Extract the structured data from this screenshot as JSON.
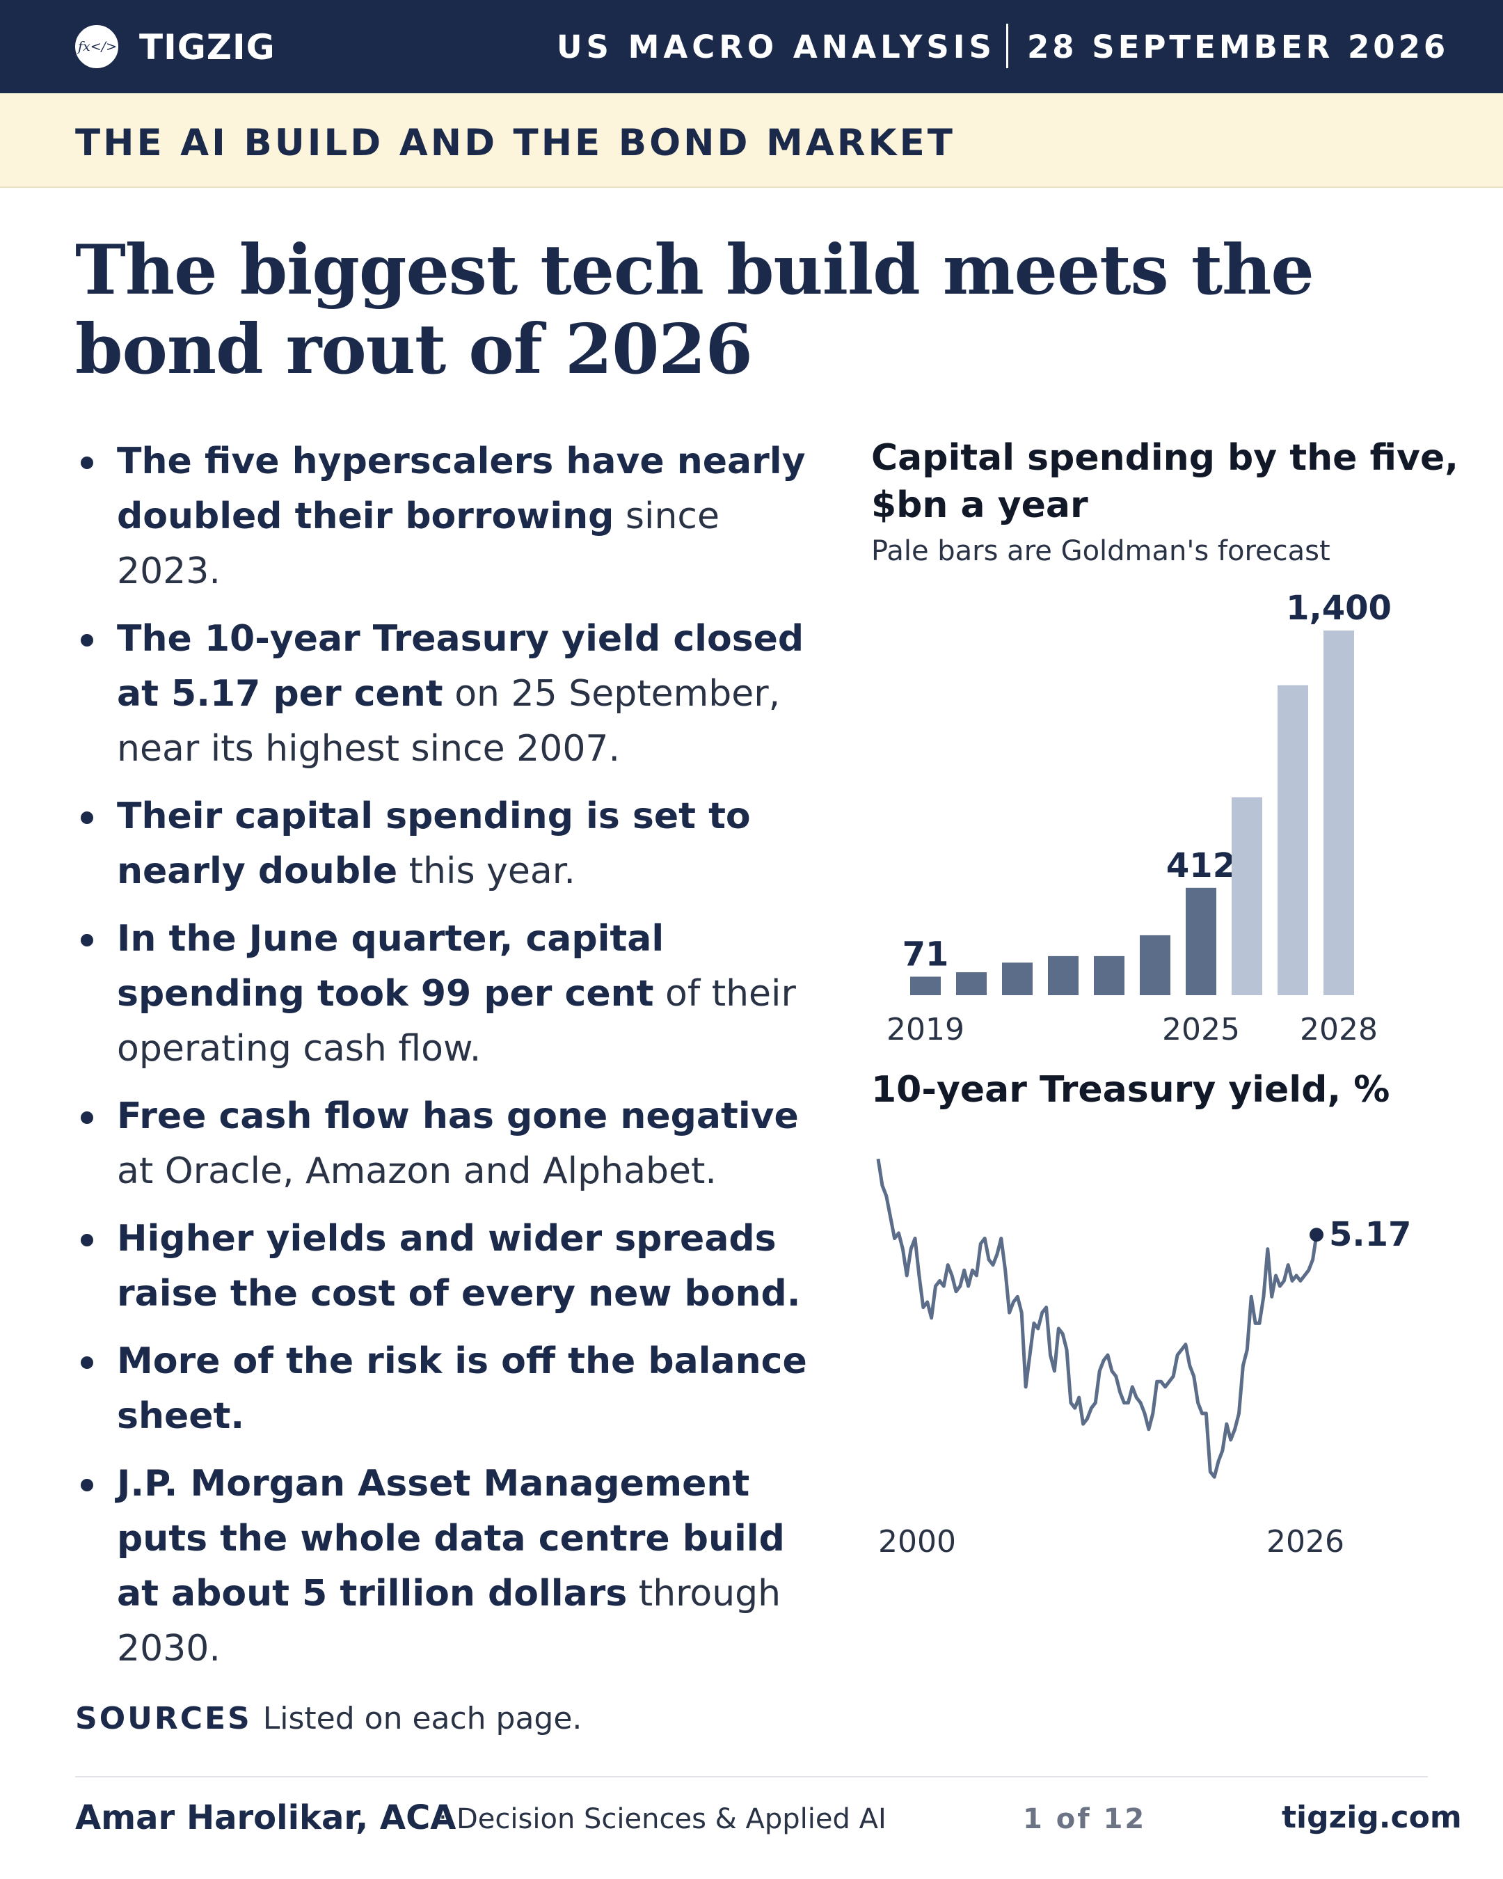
{
  "header": {
    "logo_glyph": "fx</>",
    "brand": "TIGZIG",
    "section": "US MACRO ANALYSIS",
    "date": "28 SEPTEMBER 2026"
  },
  "kicker": "THE AI BUILD AND THE BOND MARKET",
  "headline_line1": "The biggest tech build meets the",
  "headline_line2": "bond rout of 2026",
  "bullets": [
    {
      "bold": "The five hyperscalers have nearly doubled their borrowing",
      "rest": " since 2023."
    },
    {
      "bold": "The 10-year Treasury yield closed at 5.17 per cent",
      "rest": " on 25 September, near its highest since 2007."
    },
    {
      "bold": "Their capital spending is set to nearly double",
      "rest": " this year."
    },
    {
      "bold": "In the June quarter, capital spending took 99 per cent",
      "rest": " of their operating cash flow."
    },
    {
      "bold": "Free cash flow has gone negative",
      "rest": " at Oracle, Amazon and Alphabet."
    },
    {
      "bold": "Higher yields and wider spreads raise the cost of every new bond.",
      "rest": ""
    },
    {
      "bold": "More of the risk is off the balance sheet.",
      "rest": ""
    },
    {
      "bold": "J.P. Morgan Asset Management puts the whole data centre build at about 5 trillion dollars",
      "rest": " through 2030."
    }
  ],
  "sources": {
    "label": "SOURCES",
    "text": "Listed on each page."
  },
  "footer": {
    "name": "Amar Harolikar, ACA",
    "separator": "·",
    "role": "Decision Sciences & Applied AI",
    "page": "1 of 12",
    "url": "tigzig.com"
  },
  "colors": {
    "navy": "#1b2a4a",
    "cream": "#fdf4dc",
    "actual_bar": "#5c6d8a",
    "forecast_bar": "#b8c4d6",
    "line": "#5c6d8a"
  },
  "chart_data": [
    {
      "type": "bar",
      "title_line1": "Capital spending by the five,",
      "title_line2": "$bn a year",
      "subtitle": "Pale bars are Goldman's forecast",
      "categories": [
        "2019",
        "2020",
        "2021",
        "2022",
        "2023",
        "2024",
        "2025",
        "2026",
        "2027",
        "2028"
      ],
      "values": [
        71,
        88,
        125,
        150,
        150,
        230,
        412,
        760,
        1190,
        1400
      ],
      "forecast": [
        false,
        false,
        false,
        false,
        false,
        false,
        false,
        true,
        true,
        true
      ],
      "data_labels": {
        "2019": "71",
        "2025": "412",
        "2028": "1,400"
      },
      "tick_labels": [
        "2019",
        "2025",
        "2028"
      ],
      "ylim": [
        0,
        1400
      ]
    },
    {
      "type": "line",
      "title": "10-year Treasury yield, %",
      "x_tick_labels": [
        "2000",
        "2026"
      ],
      "end_label": "5.17",
      "ylim": [
        0.5,
        6.8
      ],
      "series": [
        {
          "x": [
            2000.0,
            2000.25,
            2000.5,
            2000.75,
            2001.0,
            2001.25,
            2001.5,
            2001.75,
            2002.0,
            2002.25,
            2002.5,
            2002.75,
            2003.0,
            2003.25,
            2003.5,
            2003.75,
            2004.0,
            2004.25,
            2004.5,
            2004.75,
            2005.0,
            2005.25,
            2005.5,
            2005.75,
            2006.0,
            2006.25,
            2006.5,
            2006.75,
            2007.0,
            2007.25,
            2007.5,
            2007.75,
            2008.0,
            2008.25,
            2008.5,
            2008.75,
            2009.0,
            2009.25,
            2009.5,
            2009.75,
            2010.0,
            2010.25,
            2010.5,
            2010.75,
            2011.0,
            2011.25,
            2011.5,
            2011.75,
            2012.0,
            2012.25,
            2012.5,
            2012.75,
            2013.0,
            2013.25,
            2013.5,
            2013.75,
            2014.0,
            2014.25,
            2014.5,
            2014.75,
            2015.0,
            2015.25,
            2015.5,
            2015.75,
            2016.0,
            2016.25,
            2016.5,
            2016.75,
            2017.0,
            2017.25,
            2017.5,
            2017.75,
            2018.0,
            2018.25,
            2018.5,
            2018.75,
            2019.0,
            2019.25,
            2019.5,
            2019.75,
            2020.0,
            2020.25,
            2020.5,
            2020.75,
            2021.0,
            2021.25,
            2021.5,
            2021.75,
            2022.0,
            2022.25,
            2022.5,
            2022.75,
            2023.0,
            2023.25,
            2023.5,
            2023.75,
            2024.0,
            2024.25,
            2024.5,
            2024.75,
            2025.0,
            2025.25,
            2025.5,
            2025.75,
            2026.0,
            2026.25,
            2026.5,
            2026.73
          ],
          "y": [
            6.6,
            6.1,
            5.9,
            5.5,
            5.1,
            5.2,
            4.9,
            4.4,
            4.9,
            5.1,
            4.4,
            3.8,
            3.9,
            3.6,
            4.2,
            4.3,
            4.2,
            4.6,
            4.4,
            4.1,
            4.2,
            4.5,
            4.2,
            4.5,
            4.4,
            5.0,
            5.1,
            4.7,
            4.6,
            4.8,
            5.1,
            4.5,
            3.7,
            3.9,
            4.0,
            3.7,
            2.3,
            2.9,
            3.5,
            3.4,
            3.7,
            3.8,
            2.9,
            2.6,
            3.4,
            3.3,
            3.0,
            2.0,
            1.9,
            2.1,
            1.6,
            1.7,
            1.9,
            2.0,
            2.6,
            2.8,
            2.9,
            2.6,
            2.5,
            2.2,
            2.0,
            2.0,
            2.3,
            2.1,
            2.0,
            1.8,
            1.5,
            1.8,
            2.4,
            2.4,
            2.3,
            2.4,
            2.5,
            2.9,
            3.0,
            3.1,
            2.7,
            2.5,
            2.0,
            1.8,
            1.8,
            0.7,
            0.6,
            0.9,
            1.1,
            1.6,
            1.3,
            1.5,
            1.8,
            2.7,
            3.0,
            4.0,
            3.5,
            3.5,
            4.0,
            4.9,
            4.0,
            4.4,
            4.2,
            4.3,
            4.6,
            4.3,
            4.4,
            4.3,
            4.4,
            4.5,
            4.7,
            5.17
          ]
        }
      ]
    }
  ]
}
